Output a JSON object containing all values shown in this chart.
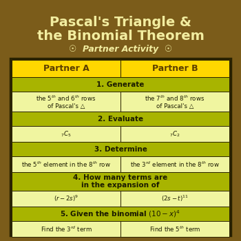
{
  "bg_color": "#7B5C1A",
  "title_line1": "Pascal's Triangle &",
  "title_line2": "the Binomial Theorem",
  "subtitle": "  Partner Activity  ",
  "title_color": "#F2EDA0",
  "subtitle_color": "#F2EDA0",
  "header_bg": "#FFD700",
  "header_text_color": "#5A3E00",
  "section_header_bg": "#A8B400",
  "section_header_color": "#1A1A00",
  "cell_bg": "#F0F5A0",
  "cell_text_color": "#1A1A00",
  "border_color": "#2A2200",
  "partner_a": "Partner A",
  "partner_b": "Partner B"
}
